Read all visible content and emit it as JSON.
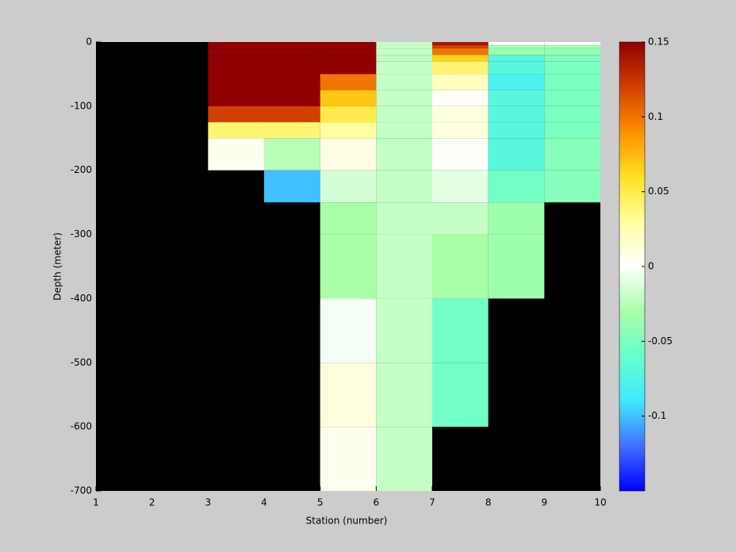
{
  "chart_data": {
    "type": "heatmap",
    "xlabel": "Station (number)",
    "ylabel": "Depth (meter)",
    "xlim": [
      1,
      10
    ],
    "xticks": [
      1,
      2,
      3,
      4,
      5,
      6,
      7,
      8,
      9,
      10
    ],
    "ylim": [
      -700,
      0
    ],
    "yticks": [
      -700,
      -600,
      -500,
      -400,
      -300,
      -200,
      -100,
      0
    ],
    "x_edges": [
      1,
      2,
      3,
      4,
      5,
      6,
      7,
      8,
      9,
      10
    ],
    "y_edges": [
      0,
      -5,
      -10,
      -20,
      -30,
      -50,
      -75,
      -100,
      -125,
      -150,
      -200,
      -250,
      -300,
      -400,
      -500,
      -600,
      -700
    ],
    "values": [
      [
        null,
        null,
        0.15,
        0.15,
        0.15,
        -0.02,
        0.14,
        0,
        0
      ],
      [
        null,
        null,
        0.15,
        0.15,
        0.15,
        -0.02,
        0.12,
        -0.035,
        -0.035
      ],
      [
        null,
        null,
        0.15,
        0.15,
        0.15,
        -0.02,
        0.1,
        -0.035,
        -0.04
      ],
      [
        null,
        null,
        0.15,
        0.15,
        0.15,
        -0.02,
        0.065,
        -0.07,
        -0.05
      ],
      [
        null,
        null,
        0.15,
        0.15,
        0.15,
        -0.02,
        0.04,
        -0.07,
        -0.05
      ],
      [
        null,
        null,
        0.15,
        0.15,
        0.1,
        -0.02,
        0.02,
        -0.08,
        -0.05
      ],
      [
        null,
        null,
        0.15,
        0.15,
        0.07,
        -0.02,
        0.003,
        -0.07,
        -0.05
      ],
      [
        null,
        null,
        0.12,
        0.12,
        0.05,
        -0.02,
        0.01,
        -0.07,
        -0.05
      ],
      [
        null,
        null,
        0.04,
        0.04,
        0.03,
        -0.02,
        0.01,
        -0.07,
        -0.05
      ],
      [
        null,
        null,
        0.005,
        -0.025,
        0.008,
        -0.02,
        0.002,
        -0.07,
        -0.045
      ],
      [
        null,
        null,
        null,
        -0.1,
        -0.015,
        -0.02,
        -0.01,
        -0.055,
        -0.045
      ],
      [
        null,
        null,
        null,
        null,
        -0.03,
        -0.02,
        -0.02,
        -0.035,
        null
      ],
      [
        null,
        null,
        null,
        null,
        -0.03,
        -0.02,
        -0.03,
        -0.035,
        null
      ],
      [
        null,
        null,
        null,
        null,
        -0.003,
        -0.02,
        -0.055,
        null,
        null
      ],
      [
        null,
        null,
        null,
        null,
        0.01,
        -0.02,
        -0.055,
        null,
        null
      ],
      [
        null,
        null,
        null,
        null,
        0.005,
        -0.02,
        null,
        null,
        null
      ]
    ],
    "clim": [
      -0.15,
      0.15
    ],
    "cticks": [
      -0.1,
      -0.05,
      0,
      0.05,
      0.1,
      0.15
    ],
    "colormap": [
      "#0000ff",
      "#4070ff",
      "#40e8ff",
      "#66ffcc",
      "#a8ffa8",
      "#ffffff",
      "#ffffa0",
      "#ffe020",
      "#ff9000",
      "#d04000",
      "#900000"
    ],
    "axes_color": "#000000"
  }
}
